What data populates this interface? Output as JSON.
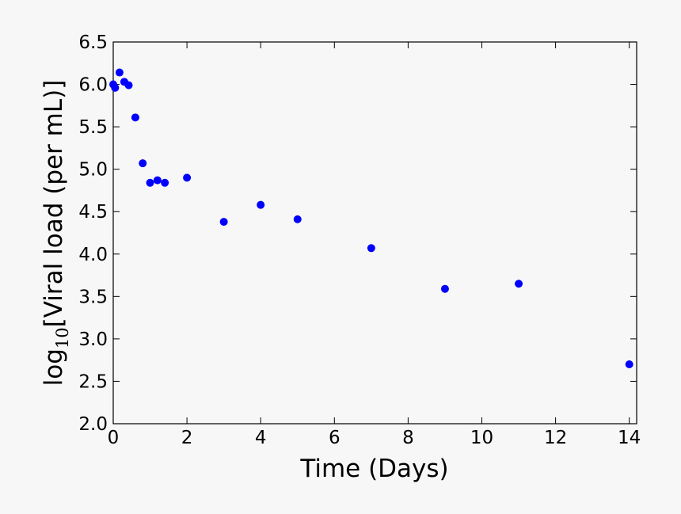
{
  "chart_data": {
    "type": "scatter",
    "xlabel": "Time (Days)",
    "ylabel": {
      "base": "log",
      "subscript": "10",
      "text": "[Viral load (per mL)]"
    },
    "series": [
      {
        "color": "#0000ff",
        "x": [
          0,
          0.05,
          0.17,
          0.3,
          0.42,
          0.6,
          0.8,
          1.0,
          1.2,
          1.4,
          2,
          3,
          4,
          5,
          7,
          9,
          11,
          14
        ],
        "values": [
          6.0,
          5.96,
          6.14,
          6.03,
          5.99,
          5.61,
          5.07,
          4.84,
          4.87,
          4.84,
          4.9,
          4.38,
          4.58,
          4.41,
          4.07,
          3.59,
          3.65,
          2.7
        ]
      }
    ],
    "xlim": [
      0,
      14.2
    ],
    "xticks": [
      0,
      2,
      4,
      6,
      8,
      10,
      12,
      14
    ],
    "ylim": [
      2.0,
      6.5
    ],
    "yticks": [
      {
        "value": 2,
        "label": "2.0"
      },
      2.5,
      {
        "value": 3,
        "label": "3.0"
      },
      3.5,
      {
        "value": 4,
        "label": "4.0"
      },
      4.5,
      {
        "value": 5,
        "label": "5.0"
      },
      5.5,
      {
        "value": 6,
        "label": "6.0"
      },
      6.5
    ],
    "grid": false
  }
}
